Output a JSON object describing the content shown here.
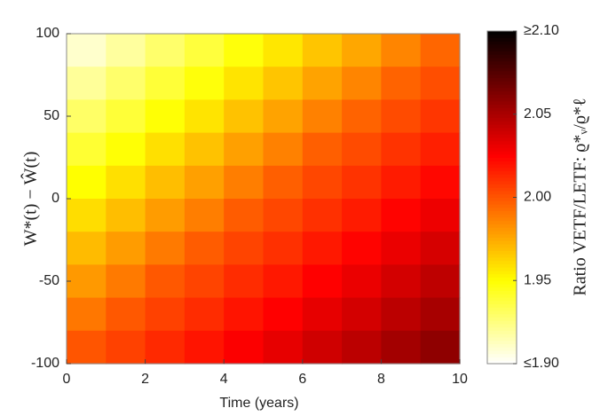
{
  "chart_data": {
    "type": "heatmap",
    "xlabel": "Time (years)",
    "ylabel": "W*(t) − Ŵ(t)",
    "colorbar_label": "Ratio VETF/LETF: ϱ*ᵥ/ϱ*ℓ",
    "colormap": "hot_r",
    "x": [
      0.5,
      1.5,
      2.5,
      3.5,
      4.5,
      5.5,
      6.5,
      7.5,
      8.5,
      9.5
    ],
    "y": [
      90,
      70,
      50,
      30,
      10,
      -10,
      -30,
      -50,
      -70,
      -90
    ],
    "z": [
      [
        1.91,
        1.919,
        1.929,
        1.938,
        1.948,
        1.957,
        1.967,
        1.976,
        1.986,
        1.995
      ],
      [
        1.92,
        1.929,
        1.939,
        1.948,
        1.958,
        1.967,
        1.977,
        1.986,
        1.996,
        2.002
      ],
      [
        1.93,
        1.939,
        1.949,
        1.958,
        1.968,
        1.977,
        1.987,
        1.996,
        2.003,
        2.009
      ],
      [
        1.94,
        1.949,
        1.959,
        1.968,
        1.978,
        1.987,
        1.997,
        2.003,
        2.01,
        2.016
      ],
      [
        1.95,
        1.959,
        1.969,
        1.978,
        1.988,
        1.997,
        2.004,
        2.01,
        2.017,
        2.023
      ],
      [
        1.96,
        1.969,
        1.979,
        1.988,
        1.998,
        2.004,
        2.011,
        2.017,
        2.024,
        2.03
      ],
      [
        1.97,
        1.979,
        1.989,
        1.998,
        2.005,
        2.011,
        2.018,
        2.024,
        2.031,
        2.037
      ],
      [
        1.98,
        1.989,
        1.999,
        2.005,
        2.012,
        2.018,
        2.025,
        2.031,
        2.038,
        2.044
      ],
      [
        1.99,
        1.999,
        2.006,
        2.012,
        2.019,
        2.025,
        2.032,
        2.038,
        2.045,
        2.051
      ],
      [
        2.0,
        2.006,
        2.013,
        2.019,
        2.026,
        2.032,
        2.039,
        2.045,
        2.052,
        2.058
      ]
    ],
    "xlim": [
      0,
      10
    ],
    "xticks": [
      0,
      2,
      4,
      6,
      8,
      10
    ],
    "ylim": [
      -100,
      100
    ],
    "yticks": [
      -100,
      -50,
      0,
      50,
      100
    ],
    "clim": [
      1.9,
      2.1
    ],
    "cticks": [
      {
        "value": 1.9,
        "label": "≤1.90"
      },
      1.95,
      {
        "value": 2.0,
        "label": "2.00"
      },
      2.05,
      {
        "value": 2.1,
        "label": "≥2.10"
      }
    ]
  }
}
